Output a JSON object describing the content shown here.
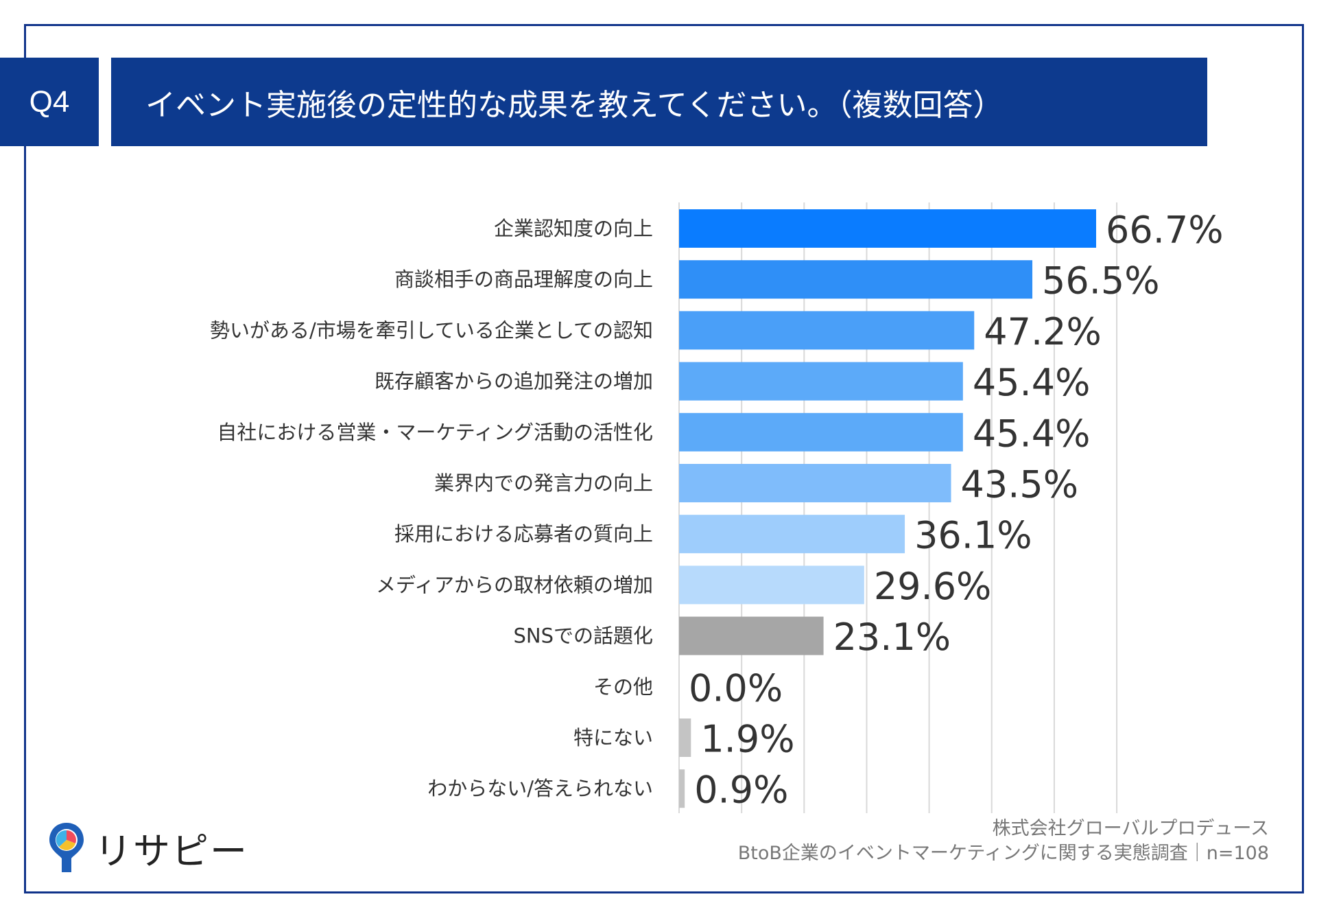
{
  "header": {
    "question": "Q4",
    "title": "イベント実施後の定性的な成果を教えてください。（複数回答）"
  },
  "colors": {
    "header_bg": "#0d3a8e",
    "frame": "#10338a"
  },
  "chart_data": {
    "type": "bar",
    "orientation": "horizontal",
    "title": "イベント実施後の定性的な成果を教えてください。（複数回答）",
    "categories": [
      "企業認知度の向上",
      "商談相手の商品理解度の向上",
      "勢いがある/市場を牽引している企業としての認知",
      "既存顧客からの追加発注の増加",
      "自社における営業・マーケティング活動の活性化",
      "業界内での発言力の向上",
      "採用における応募者の質向上",
      "メディアからの取材依頼の増加",
      "SNSでの話題化",
      "その他",
      "特にない",
      "わからない/答えられない"
    ],
    "values": [
      66.7,
      56.5,
      47.2,
      45.4,
      45.4,
      43.5,
      36.1,
      29.6,
      23.1,
      0.0,
      1.9,
      0.9
    ],
    "value_labels": [
      "66.7%",
      "56.5%",
      "47.2%",
      "45.4%",
      "45.4%",
      "43.5%",
      "36.1%",
      "29.6%",
      "23.1%",
      "0.0%",
      "1.9%",
      "0.9%"
    ],
    "bar_colors": [
      "#0a7cff",
      "#2f8ff7",
      "#4a9ff8",
      "#5caaf9",
      "#5caaf9",
      "#7fbcfb",
      "#9ecdfc",
      "#b7dafc",
      "#a6a6a6",
      "#c4c4c4",
      "#c4c4c4",
      "#c4c4c4"
    ],
    "xlim": [
      0,
      70
    ],
    "grid": true,
    "xlabel": "",
    "ylabel": ""
  },
  "footer": {
    "company": "株式会社グローバルプロデュース",
    "survey": "BtoB企業のイベントマーケティングに関する実態調査｜n=108"
  },
  "logo": {
    "name": "リサピー",
    "icon": "pin-logo-icon"
  }
}
